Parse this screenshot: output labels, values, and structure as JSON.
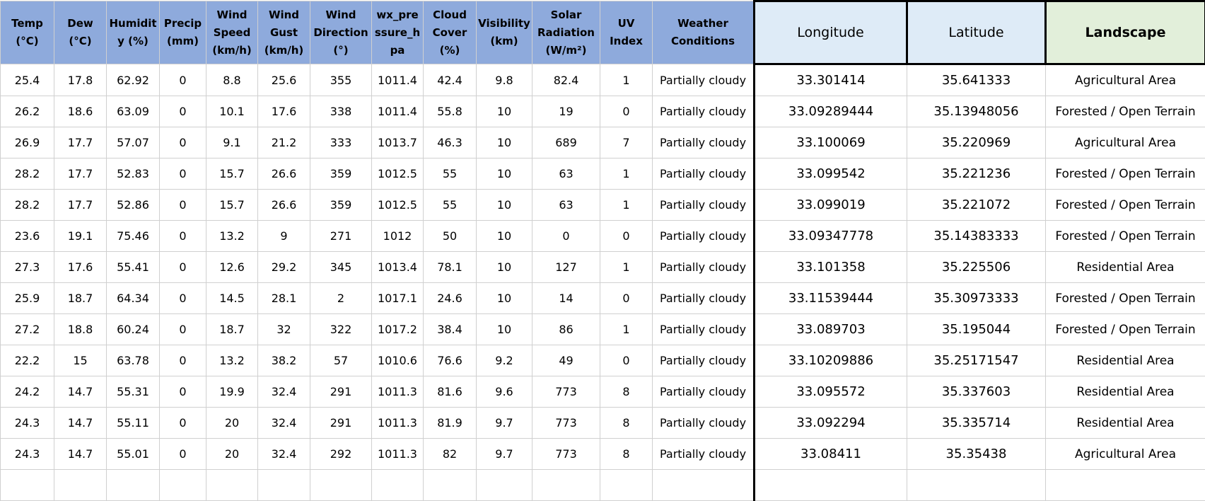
{
  "table": {
    "columns": [
      "Temp (°C)",
      "Dew (°C)",
      "Humidity (%)",
      "Precip (mm)",
      "Wind Speed (km/h)",
      "Wind Gust (km/h)",
      "Wind Direction (°)",
      "wx_pressure_hpa",
      "Cloud Cover (%)",
      "Visibility (km)",
      "Solar Radiation (W/m²)",
      "UV Index",
      "Weather Conditions",
      "Longitude",
      "Latitude",
      "Landscape"
    ],
    "rows": [
      [
        25.4,
        17.8,
        62.92,
        0,
        8.8,
        25.6,
        355,
        1011.4,
        42.4,
        9.8,
        82.4,
        1,
        "Partially cloudy",
        33.301414,
        35.641333,
        "Agricultural Area"
      ],
      [
        26.2,
        18.6,
        63.09,
        0,
        10.1,
        17.6,
        338,
        1011.4,
        55.8,
        10,
        19,
        0,
        "Partially cloudy",
        33.09289444,
        35.13948056,
        "Forested / Open Terrain"
      ],
      [
        26.9,
        17.7,
        57.07,
        0,
        9.1,
        21.2,
        333,
        1013.7,
        46.3,
        10,
        689,
        7,
        "Partially cloudy",
        33.100069,
        35.220969,
        "Agricultural Area"
      ],
      [
        28.2,
        17.7,
        52.83,
        0,
        15.7,
        26.6,
        359,
        1012.5,
        55,
        10,
        63,
        1,
        "Partially cloudy",
        33.099542,
        35.221236,
        "Forested / Open Terrain"
      ],
      [
        28.2,
        17.7,
        52.86,
        0,
        15.7,
        26.6,
        359,
        1012.5,
        55,
        10,
        63,
        1,
        "Partially cloudy",
        33.099019,
        35.221072,
        "Forested / Open Terrain"
      ],
      [
        23.6,
        19.1,
        75.46,
        0,
        13.2,
        9,
        271,
        1012,
        50,
        10,
        0,
        0,
        "Partially cloudy",
        33.09347778,
        35.14383333,
        "Forested / Open Terrain"
      ],
      [
        27.3,
        17.6,
        55.41,
        0,
        12.6,
        29.2,
        345,
        1013.4,
        78.1,
        10,
        127,
        1,
        "Partially cloudy",
        33.101358,
        35.225506,
        "Residential Area"
      ],
      [
        25.9,
        18.7,
        64.34,
        0,
        14.5,
        28.1,
        2,
        1017.1,
        24.6,
        10,
        14,
        0,
        "Partially cloudy",
        33.11539444,
        35.30973333,
        "Forested / Open Terrain"
      ],
      [
        27.2,
        18.8,
        60.24,
        0,
        18.7,
        32,
        322,
        1017.2,
        38.4,
        10,
        86,
        1,
        "Partially cloudy",
        33.089703,
        35.195044,
        "Forested / Open Terrain"
      ],
      [
        22.2,
        15,
        63.78,
        0,
        13.2,
        38.2,
        57,
        1010.6,
        76.6,
        9.2,
        49,
        0,
        "Partially cloudy",
        33.10209886,
        35.25171547,
        "Residential Area"
      ],
      [
        24.2,
        14.7,
        55.31,
        0,
        19.9,
        32.4,
        291,
        1011.3,
        81.6,
        9.6,
        773,
        8,
        "Partially cloudy",
        33.095572,
        35.337603,
        "Residential Area"
      ],
      [
        24.3,
        14.7,
        55.11,
        0,
        20,
        32.4,
        291,
        1011.3,
        81.9,
        9.7,
        773,
        8,
        "Partially cloudy",
        33.092294,
        35.335714,
        "Residential Area"
      ],
      [
        24.3,
        14.7,
        55.01,
        0,
        20,
        32.4,
        292,
        1011.3,
        82,
        9.7,
        773,
        8,
        "Partially cloudy",
        33.08411,
        35.35438,
        "Agricultural Area"
      ]
    ]
  }
}
